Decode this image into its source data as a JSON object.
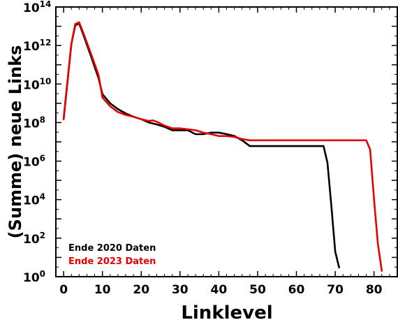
{
  "chart_data": {
    "type": "line",
    "title": "",
    "xlabel": "Linklevel",
    "ylabel": "(Summe) neue Links",
    "xlim": [
      -2,
      86
    ],
    "ylim": [
      1,
      100000000000000.0
    ],
    "yscale": "log",
    "grid": false,
    "legend_position": "bottom-left",
    "x_ticks": [
      0,
      10,
      20,
      30,
      40,
      50,
      60,
      70,
      80
    ],
    "y_tick_exponents": [
      0,
      2,
      4,
      6,
      8,
      10,
      12,
      14
    ],
    "y_tick_base": "10",
    "series": [
      {
        "name": "Ende 2020 Daten",
        "color": "#000000",
        "x": [
          0,
          2,
          3,
          4,
          5,
          7,
          9,
          10,
          12,
          14,
          16,
          18,
          20,
          22,
          24,
          26,
          28,
          30,
          32,
          34,
          36,
          38,
          40,
          42,
          44,
          46,
          48,
          50,
          55,
          60,
          65,
          67,
          68,
          69,
          70,
          71
        ],
        "y": [
          150000000.0,
          1200000000000.0,
          11000000000000.0,
          14000000000000.0,
          4000000000000.0,
          300000000000.0,
          20000000000.0,
          3000000000.0,
          1000000000.0,
          500000000.0,
          300000000.0,
          200000000.0,
          150000000.0,
          100000000.0,
          80000000.0,
          60000000.0,
          40000000.0,
          40000000.0,
          40000000.0,
          25000000.0,
          25000000.0,
          30000000.0,
          30000000.0,
          25000000.0,
          20000000.0,
          12000000.0,
          6000000.0,
          6000000.0,
          6000000.0,
          6000000.0,
          6000000.0,
          6000000.0,
          800000.0,
          5000.0,
          20.0,
          3
        ]
      },
      {
        "name": "Ende 2023 Daten",
        "color": "#e60000",
        "x": [
          0,
          2,
          3,
          4,
          5,
          7,
          9,
          10,
          12,
          14,
          16,
          18,
          20,
          22,
          23,
          24,
          26,
          28,
          30,
          32,
          34,
          36,
          38,
          40,
          42,
          44,
          46,
          48,
          50,
          55,
          60,
          65,
          70,
          75,
          78,
          79,
          80,
          81,
          82
        ],
        "y": [
          150000000.0,
          1200000000000.0,
          13000000000000.0,
          16000000000000.0,
          5000000000000.0,
          400000000000.0,
          30000000000.0,
          2000000000.0,
          700000000.0,
          350000000.0,
          250000000.0,
          200000000.0,
          150000000.0,
          120000000.0,
          130000000.0,
          110000000.0,
          70000000.0,
          50000000.0,
          50000000.0,
          45000000.0,
          40000000.0,
          30000000.0,
          25000000.0,
          20000000.0,
          20000000.0,
          18000000.0,
          14000000.0,
          12000000.0,
          12000000.0,
          12000000.0,
          12000000.0,
          12000000.0,
          12000000.0,
          12000000.0,
          12000000.0,
          4000000.0,
          10000.0,
          50.0,
          2
        ]
      }
    ]
  }
}
